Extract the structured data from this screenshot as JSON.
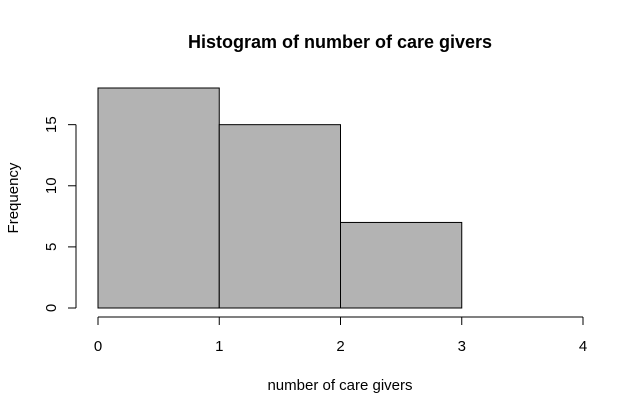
{
  "chart_data": {
    "type": "bar",
    "title": "Histogram of number of care givers",
    "xlabel": "number of care givers",
    "ylabel": "Frequency",
    "bins": [
      {
        "start": 0,
        "end": 1,
        "count": 18
      },
      {
        "start": 1,
        "end": 2,
        "count": 15
      },
      {
        "start": 2,
        "end": 3,
        "count": 7
      },
      {
        "start": 3,
        "end": 4,
        "count": 0
      }
    ],
    "x_ticks": [
      "0",
      "1",
      "2",
      "3",
      "4"
    ],
    "y_ticks": [
      "0",
      "5",
      "10",
      "15"
    ],
    "xlim": [
      0,
      4
    ],
    "ylim": [
      0,
      18
    ],
    "grid": false,
    "legend": "none",
    "colors": {
      "bar_fill": "#b3b3b3",
      "bar_stroke": "#000000",
      "axis": "#000000"
    }
  }
}
